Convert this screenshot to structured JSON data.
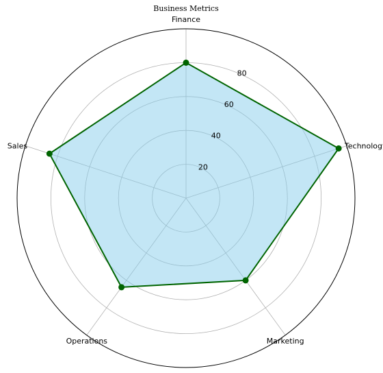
{
  "chart_data": {
    "type": "radar",
    "title": "Business Metrics",
    "categories": [
      "Finance",
      "Technology",
      "Marketing",
      "Operations",
      "Sales"
    ],
    "series": [
      {
        "values": [
          80,
          95,
          60,
          65,
          85
        ]
      }
    ],
    "r_ticks": [
      20,
      40,
      60,
      80
    ],
    "rlim": [
      0,
      100
    ],
    "grid": true,
    "colors": {
      "line": "#006400",
      "fill": "#87ceeb",
      "grid": "#b0b0b0"
    }
  }
}
